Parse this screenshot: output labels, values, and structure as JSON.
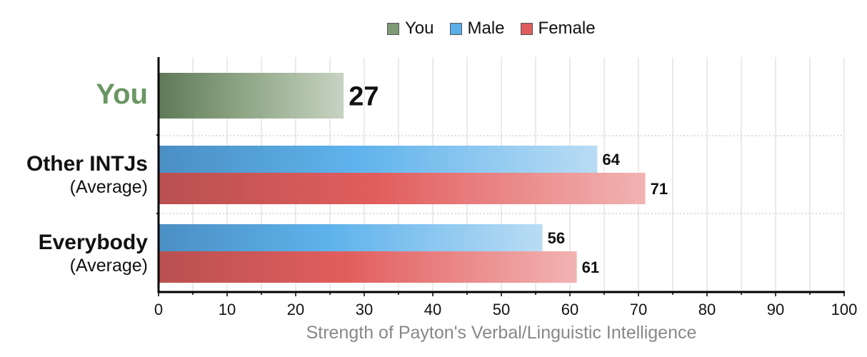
{
  "chart_data": {
    "type": "bar",
    "orientation": "horizontal",
    "xlabel": "Strength of Payton's Verbal/Linguistic Intelligence",
    "xlim": [
      0,
      100
    ],
    "xticks": [
      0,
      10,
      20,
      30,
      40,
      50,
      60,
      70,
      80,
      90,
      100
    ],
    "grid": true,
    "legend_position": "top-center",
    "legend": [
      {
        "name": "You",
        "color": "#7f9a78"
      },
      {
        "name": "Male",
        "color": "#5aaee8"
      },
      {
        "name": "Female",
        "color": "#e05d5d"
      }
    ],
    "categories": [
      {
        "label": "You",
        "sublabel": "",
        "bars": [
          {
            "series": "You",
            "value": 27
          }
        ]
      },
      {
        "label": "Other INTJs",
        "sublabel": "(Average)",
        "bars": [
          {
            "series": "Male",
            "value": 64
          },
          {
            "series": "Female",
            "value": 71
          }
        ]
      },
      {
        "label": "Everybody",
        "sublabel": "(Average)",
        "bars": [
          {
            "series": "Male",
            "value": 56
          },
          {
            "series": "Female",
            "value": 61
          }
        ]
      }
    ]
  }
}
